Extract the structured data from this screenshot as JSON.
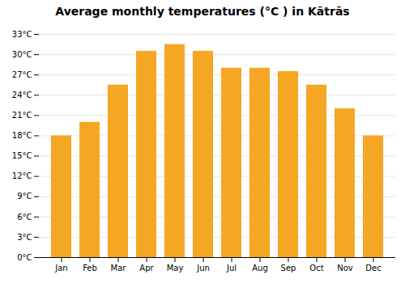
{
  "chart_data": {
    "type": "bar",
    "title": "Average monthly temperatures (°C ) in Kātrās",
    "categories": [
      "Jan",
      "Feb",
      "Mar",
      "Apr",
      "May",
      "Jun",
      "Jul",
      "Aug",
      "Sep",
      "Oct",
      "Nov",
      "Dec"
    ],
    "values": [
      18,
      20,
      25.5,
      30.5,
      31.5,
      30.5,
      28,
      28,
      27.5,
      25.5,
      22,
      18
    ],
    "color": "#F5A623",
    "ylim": [
      0,
      33
    ],
    "yticks": [
      {
        "value": 0,
        "label": "0°C"
      },
      {
        "value": 3,
        "label": "3°C"
      },
      {
        "value": 6,
        "label": "6°C"
      },
      {
        "value": 9,
        "label": "9°C"
      },
      {
        "value": 12,
        "label": "12°C"
      },
      {
        "value": 15,
        "label": "15°C"
      },
      {
        "value": 18,
        "label": "18°C"
      },
      {
        "value": 21,
        "label": "21°C"
      },
      {
        "value": 24,
        "label": "24°C"
      },
      {
        "value": 27,
        "label": "27°C"
      },
      {
        "value": 30,
        "label": "30°C"
      },
      {
        "value": 33,
        "label": "33°C"
      }
    ],
    "grid": true
  }
}
